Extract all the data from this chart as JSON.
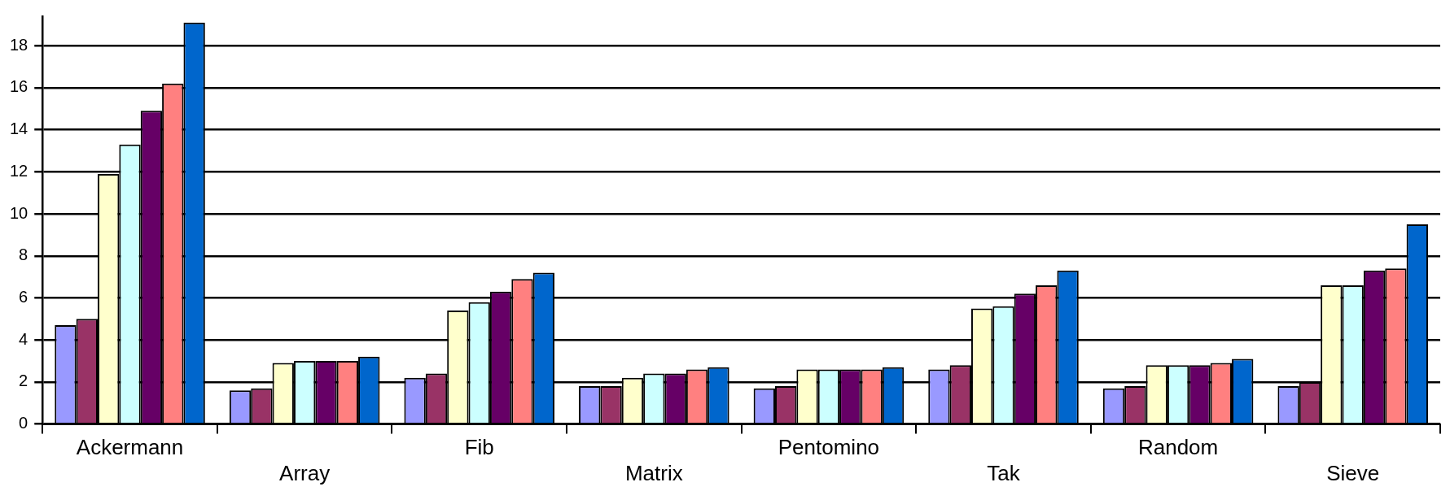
{
  "chart_data": {
    "type": "bar",
    "categories": [
      "Ackermann",
      "Array",
      "Fib",
      "Matrix",
      "Pentomino",
      "Tak",
      "Random",
      "Sieve"
    ],
    "series": [
      {
        "color": "#9999ff",
        "values": [
          4.7,
          1.6,
          2.2,
          1.8,
          1.7,
          2.6,
          1.7,
          1.8
        ]
      },
      {
        "color": "#993366",
        "values": [
          5.0,
          1.7,
          2.4,
          1.8,
          1.8,
          2.8,
          1.8,
          2.0
        ]
      },
      {
        "color": "#ffffcc",
        "values": [
          11.9,
          2.9,
          5.4,
          2.2,
          2.6,
          5.5,
          2.8,
          6.6
        ]
      },
      {
        "color": "#ccffff",
        "values": [
          13.3,
          3.0,
          5.8,
          2.4,
          2.6,
          5.6,
          2.8,
          6.6
        ]
      },
      {
        "color": "#660066",
        "values": [
          14.9,
          3.0,
          6.3,
          2.4,
          2.6,
          6.2,
          2.8,
          7.3
        ]
      },
      {
        "color": "#ff8080",
        "values": [
          16.2,
          3.0,
          6.9,
          2.6,
          2.6,
          6.6,
          2.9,
          7.4
        ]
      },
      {
        "color": "#0066cc",
        "values": [
          19.1,
          3.2,
          7.2,
          2.7,
          2.7,
          7.3,
          3.1,
          9.5
        ]
      }
    ],
    "ylim": [
      0,
      19.4
    ],
    "yticks": [
      0,
      2,
      4,
      6,
      8,
      10,
      12,
      14,
      16,
      18
    ],
    "grid": "y",
    "legend": false
  }
}
